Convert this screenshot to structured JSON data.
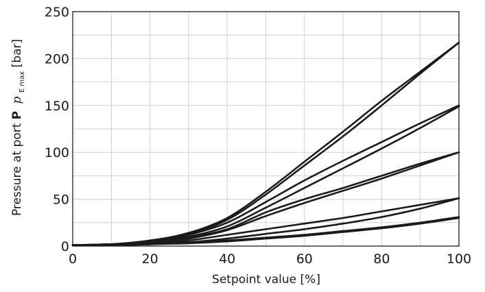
{
  "chart_data": {
    "type": "line",
    "title": "",
    "xlabel": "Setpoint value [%]",
    "ylabel": {
      "prefix": "Pressure at port ",
      "port": "P",
      "symbol": "p",
      "subscript": "E max",
      "suffix": " [bar]"
    },
    "xlim": [
      0,
      100
    ],
    "ylim": [
      0,
      250
    ],
    "xticks": [
      0,
      20,
      40,
      60,
      80,
      100
    ],
    "yticks": [
      0,
      50,
      100,
      150,
      200,
      250
    ],
    "grid": true,
    "series": [
      {
        "x": [
          0,
          10,
          20,
          30,
          40,
          50,
          60,
          70,
          80,
          90,
          100
        ],
        "values": [
          1,
          2,
          6,
          14,
          30,
          58,
          90,
          122,
          155,
          186,
          217
        ]
      },
      {
        "x": [
          0,
          10,
          20,
          30,
          40,
          50,
          60,
          70,
          80,
          90,
          100
        ],
        "values": [
          1,
          2,
          5,
          13,
          28,
          55,
          86,
          117,
          150,
          184,
          217
        ]
      },
      {
        "x": [
          0,
          10,
          20,
          30,
          40,
          50,
          60,
          70,
          80,
          90,
          100
        ],
        "values": [
          1,
          2,
          5,
          12,
          25,
          47,
          70,
          91,
          111,
          131,
          150
        ]
      },
      {
        "x": [
          0,
          10,
          20,
          30,
          40,
          50,
          60,
          70,
          80,
          90,
          100
        ],
        "values": [
          1,
          2,
          4,
          10,
          21,
          41,
          62,
          83,
          104,
          126,
          149
        ]
      },
      {
        "x": [
          0,
          10,
          20,
          30,
          40,
          50,
          60,
          70,
          80,
          90,
          100
        ],
        "values": [
          1,
          2,
          4,
          9,
          18,
          36,
          50,
          62,
          75,
          88,
          100
        ]
      },
      {
        "x": [
          0,
          10,
          20,
          30,
          40,
          50,
          60,
          70,
          80,
          90,
          100
        ],
        "values": [
          1,
          1,
          3,
          8,
          17,
          32,
          46,
          59,
          72,
          86,
          100
        ]
      },
      {
        "x": [
          0,
          10,
          20,
          30,
          40,
          50,
          60,
          70,
          80,
          90,
          100
        ],
        "values": [
          1,
          1,
          3,
          6,
          12,
          18,
          24,
          30,
          37,
          44,
          51
        ]
      },
      {
        "x": [
          0,
          10,
          20,
          30,
          40,
          50,
          60,
          70,
          80,
          90,
          100
        ],
        "values": [
          1,
          1,
          2,
          4,
          8,
          13,
          18,
          24,
          31,
          40,
          51
        ]
      },
      {
        "x": [
          0,
          10,
          20,
          30,
          40,
          50,
          60,
          70,
          80,
          90,
          100
        ],
        "values": [
          1,
          1,
          2,
          4,
          6,
          9,
          12,
          16,
          20,
          25,
          31
        ]
      },
      {
        "x": [
          0,
          10,
          20,
          30,
          40,
          50,
          60,
          70,
          80,
          90,
          100
        ],
        "values": [
          1,
          1,
          2,
          3,
          5,
          8,
          11,
          15,
          19,
          24,
          30
        ]
      }
    ]
  }
}
